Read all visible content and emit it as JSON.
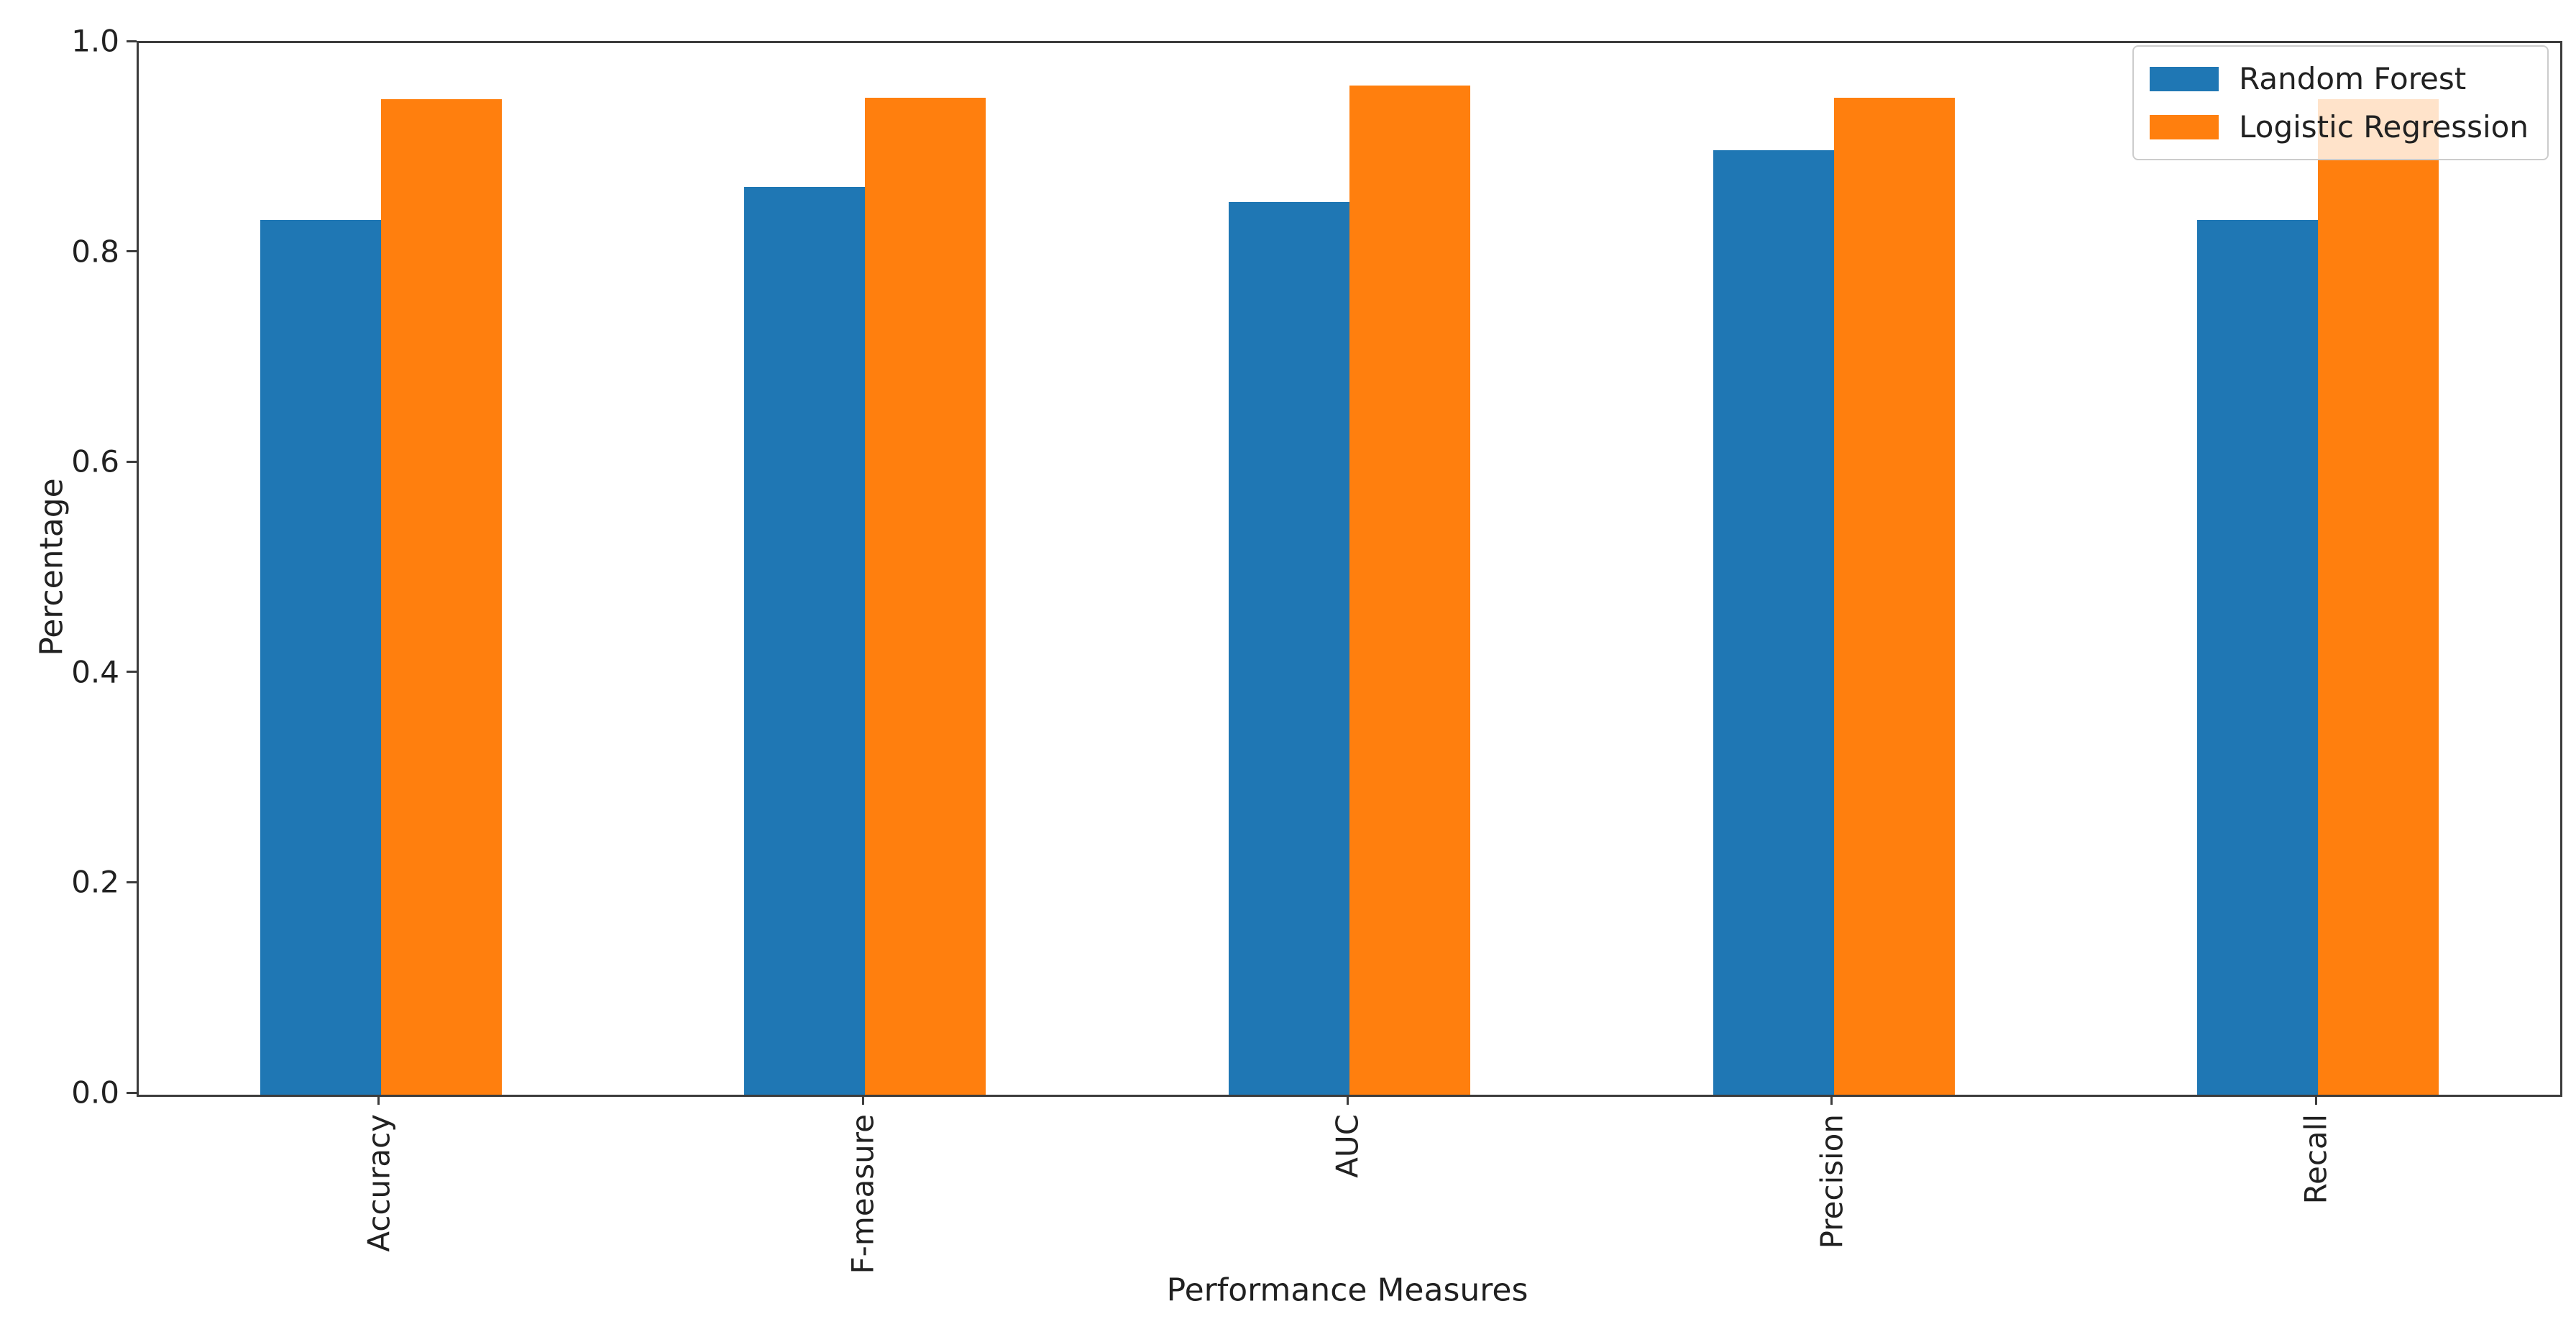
{
  "figure": {
    "background": "#ffffff"
  },
  "chart_data": {
    "type": "bar",
    "title": "",
    "xlabel": "Performance Measures",
    "ylabel": "Percentage",
    "categories": [
      "Accuracy",
      "F-measure",
      "AUC",
      "Precision",
      "Recall"
    ],
    "series": [
      {
        "name": "Random Forest",
        "color": "#1f77b4",
        "values": [
          0.832,
          0.863,
          0.849,
          0.898,
          0.832
        ]
      },
      {
        "name": "Logistic Regression",
        "color": "#ff7f0e",
        "values": [
          0.947,
          0.948,
          0.96,
          0.948,
          0.947
        ]
      }
    ],
    "ylim": [
      0.0,
      1.0
    ],
    "ytick_values": [
      0.0,
      0.2,
      0.4,
      0.6,
      0.8,
      1.0
    ],
    "ytick_labels": [
      "0.0",
      "0.2",
      "0.4",
      "0.6",
      "0.8",
      "1.0"
    ],
    "xtick_rotation_deg": 90,
    "grid": false,
    "legend_position": "upper right"
  },
  "axes": {
    "spine_color": "#3c3c3c",
    "tick_color": "#3c3c3c",
    "text_color": "#212121"
  },
  "legend_style": {
    "border_color": "#cccccc",
    "background": "rgba(255,255,255,0.78)"
  }
}
